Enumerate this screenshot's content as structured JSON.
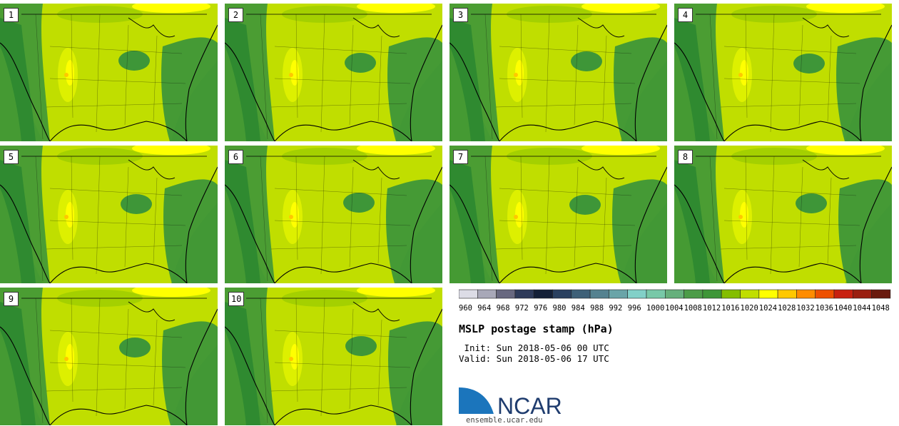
{
  "chart_data": {
    "type": "heatmap",
    "title": "MSLP postage stamp (hPa)",
    "init_label": " Init: Sun 2018-05-06 00 UTC",
    "valid_label": "Valid: Sun 2018-05-06 17 UTC",
    "members": [
      "1",
      "2",
      "3",
      "4",
      "5",
      "6",
      "7",
      "8",
      "9",
      "10"
    ],
    "colorbar": {
      "ticks": [
        "960",
        "964",
        "968",
        "972",
        "976",
        "980",
        "984",
        "988",
        "992",
        "996",
        "1000",
        "1004",
        "1008",
        "1012",
        "1016",
        "1020",
        "1024",
        "1028",
        "1032",
        "1036",
        "1040",
        "1044",
        "1048"
      ],
      "colors": [
        "#dcdce6",
        "#a8a8b8",
        "#686880",
        "#2e3a5a",
        "#142038",
        "#2a4060",
        "#3e6078",
        "#558290",
        "#6aa4a8",
        "#82d0c8",
        "#78c8a8",
        "#66b07c",
        "#4c9c48",
        "#3e9638",
        "#84be00",
        "#c0de00",
        "#ffff00",
        "#ffc800",
        "#ff8c00",
        "#ee5000",
        "#c82010",
        "#9a1e10",
        "#6a1a0e"
      ]
    }
  },
  "logo": {
    "brand": "NCAR",
    "url": "ensemble.ucar.edu"
  },
  "colors": {
    "ocean_green": "#84be00",
    "land_yellow": "#c0de00",
    "low_green": "#3e9638",
    "high_yellow": "#ffff00",
    "peak_orange": "#ffc800",
    "ncar_blue": "#1b75bc"
  }
}
